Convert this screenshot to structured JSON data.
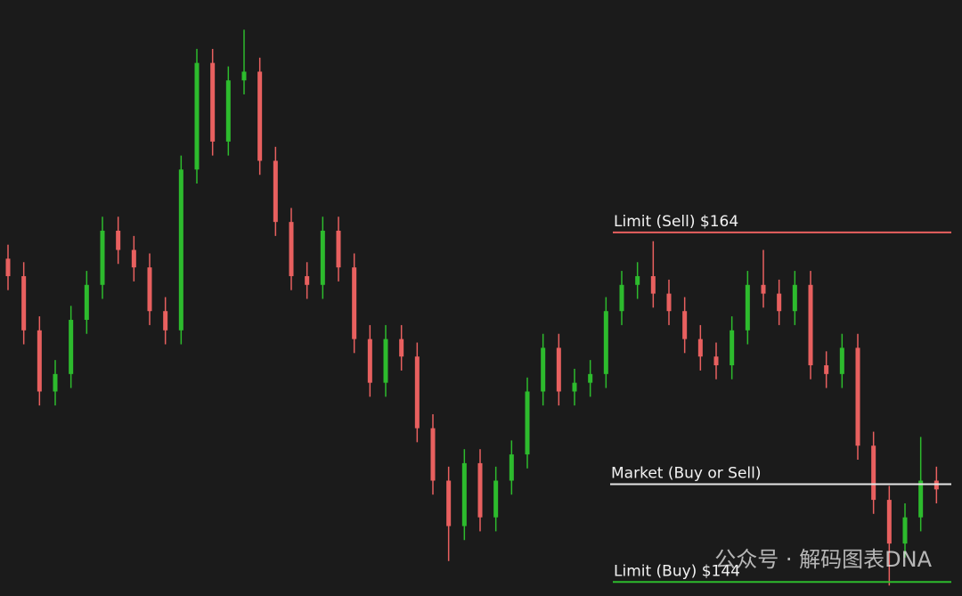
{
  "chart_data": {
    "type": "candlestick",
    "ylim": [
      143.2,
      177.3
    ],
    "up_color": "#2dbb2d",
    "down_color": "#e8605f",
    "open": [
      162.5,
      161.5,
      158.4,
      154.9,
      155.9,
      159.0,
      161.0,
      164.1,
      163.0,
      162.0,
      159.5,
      158.4,
      167.6,
      173.7,
      169.2,
      172.7,
      173.2,
      168.1,
      164.6,
      161.5,
      161.0,
      164.1,
      162.0,
      157.9,
      155.4,
      157.9,
      156.9,
      152.8,
      149.8,
      147.2,
      150.8,
      147.7,
      149.8,
      151.3,
      154.9,
      157.4,
      154.9,
      155.4,
      155.9,
      159.5,
      161.0,
      161.5,
      160.5,
      159.5,
      157.9,
      156.9,
      156.4,
      158.4,
      161.0,
      160.5,
      159.5,
      161.0,
      156.4,
      155.9,
      157.4,
      151.8,
      148.7,
      146.2,
      147.7,
      149.8
    ],
    "high": [
      163.3,
      162.3,
      159.2,
      156.7,
      159.8,
      161.8,
      164.9,
      164.9,
      163.8,
      162.8,
      160.3,
      168.4,
      174.5,
      174.5,
      173.5,
      175.6,
      174.0,
      168.9,
      165.4,
      162.3,
      164.9,
      164.9,
      162.8,
      158.7,
      158.7,
      158.7,
      157.7,
      153.6,
      150.6,
      151.6,
      151.6,
      150.6,
      152.1,
      155.7,
      158.2,
      158.2,
      156.2,
      156.7,
      160.3,
      161.8,
      162.3,
      163.5,
      161.3,
      160.3,
      158.7,
      157.7,
      159.2,
      161.8,
      163.0,
      161.3,
      161.8,
      161.8,
      157.2,
      158.2,
      158.2,
      152.6,
      149.5,
      148.5,
      152.3,
      150.6
    ],
    "low": [
      160.7,
      157.6,
      154.1,
      154.1,
      155.1,
      158.2,
      160.2,
      162.2,
      161.2,
      158.7,
      157.6,
      157.6,
      166.8,
      168.4,
      168.4,
      171.9,
      167.3,
      163.8,
      160.7,
      160.2,
      160.2,
      161.2,
      157.1,
      154.6,
      154.6,
      156.1,
      152.0,
      149.0,
      145.2,
      146.4,
      146.9,
      146.9,
      149.0,
      150.5,
      154.1,
      154.1,
      154.1,
      154.6,
      155.1,
      158.7,
      160.2,
      159.7,
      158.7,
      157.1,
      156.1,
      155.6,
      155.6,
      157.6,
      159.7,
      158.7,
      158.7,
      155.6,
      155.1,
      155.1,
      151.0,
      147.9,
      143.8,
      145.4,
      146.9,
      148.5
    ],
    "close": [
      161.5,
      158.4,
      154.9,
      155.9,
      159.0,
      161.0,
      164.1,
      163.0,
      162.0,
      159.5,
      158.4,
      167.6,
      173.7,
      169.2,
      172.7,
      173.2,
      168.1,
      164.6,
      161.5,
      161.0,
      164.1,
      162.0,
      157.9,
      155.4,
      157.9,
      156.9,
      152.8,
      149.8,
      147.2,
      150.8,
      147.7,
      149.8,
      151.3,
      154.9,
      157.4,
      154.9,
      155.4,
      155.9,
      159.5,
      161.0,
      161.5,
      160.5,
      159.5,
      157.9,
      156.9,
      156.4,
      158.4,
      161.0,
      160.5,
      159.5,
      161.0,
      156.4,
      155.9,
      157.4,
      151.8,
      148.7,
      146.2,
      147.7,
      149.8,
      149.3
    ],
    "levels": [
      {
        "label": "Limit (Sell) $164",
        "value": 164,
        "color": "#e8605f"
      },
      {
        "label": "Market (Buy or Sell)",
        "value": 149.6,
        "color": "#e6e6e6"
      },
      {
        "label": "Limit (Buy) $144",
        "value": 144,
        "color": "#2dbb2d"
      }
    ],
    "watermark": "公众号 · 解码图表DNA"
  }
}
